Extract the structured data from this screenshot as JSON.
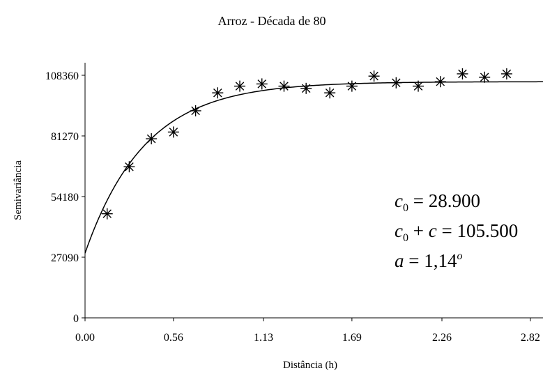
{
  "chart_data": {
    "type": "scatter",
    "title": "Arroz - Década de 80",
    "xlabel": "Distância (h)",
    "ylabel": "Semivariância",
    "xlim": [
      0,
      2.9
    ],
    "ylim": [
      0,
      108360
    ],
    "x_ticks": [
      "0.00",
      "0.56",
      "1.13",
      "1.69",
      "2.26",
      "2.82"
    ],
    "x_tick_values": [
      0,
      0.56,
      1.13,
      1.69,
      2.26,
      2.82
    ],
    "y_ticks": [
      "0",
      "27090",
      "54180",
      "81270",
      "108360"
    ],
    "y_tick_values": [
      0,
      27090,
      54180,
      81270,
      108360
    ],
    "points": [
      {
        "x": 0.14,
        "y": 46500
      },
      {
        "x": 0.28,
        "y": 67500
      },
      {
        "x": 0.42,
        "y": 80000
      },
      {
        "x": 0.56,
        "y": 83000
      },
      {
        "x": 0.7,
        "y": 92500
      },
      {
        "x": 0.84,
        "y": 100500
      },
      {
        "x": 0.98,
        "y": 103500
      },
      {
        "x": 1.12,
        "y": 104500
      },
      {
        "x": 1.26,
        "y": 103500
      },
      {
        "x": 1.4,
        "y": 102500
      },
      {
        "x": 1.55,
        "y": 100500
      },
      {
        "x": 1.69,
        "y": 103500
      },
      {
        "x": 1.83,
        "y": 108000
      },
      {
        "x": 1.97,
        "y": 105000
      },
      {
        "x": 2.11,
        "y": 103500
      },
      {
        "x": 2.25,
        "y": 105500
      },
      {
        "x": 2.39,
        "y": 109000
      },
      {
        "x": 2.53,
        "y": 107500
      },
      {
        "x": 2.67,
        "y": 109000
      }
    ],
    "model": {
      "type": "exponential",
      "c0": 28900,
      "sill": 105500,
      "range": 1.14
    },
    "marker": "asterisk",
    "grid": false,
    "legend": "none",
    "annotations": {
      "line1": {
        "lhs": "c",
        "sub": "0",
        "op": " = ",
        "rhs": "28.900"
      },
      "line2": {
        "lhs": "c",
        "sub": "0",
        "mid": " + ",
        "c": "c",
        "op": " = ",
        "rhs": "105.500"
      },
      "line3": {
        "lhs": "a",
        "op": " = ",
        "rhs": "1,14",
        "sup": "o"
      }
    },
    "colors": {
      "ink": "#000000",
      "background": "#ffffff"
    }
  }
}
